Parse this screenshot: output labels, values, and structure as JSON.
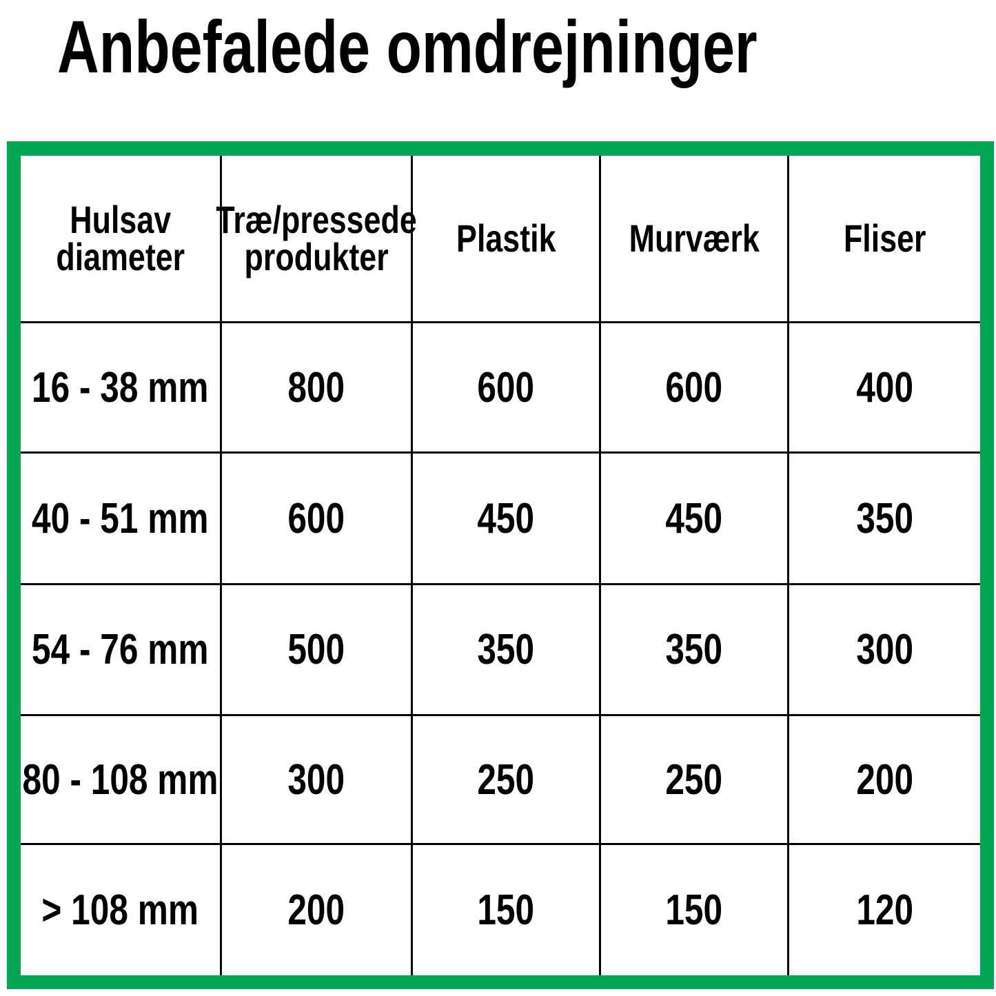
{
  "title": "Anbefalede omdrejninger",
  "colors": {
    "border": "#00a651",
    "grid": "#000000"
  },
  "table": {
    "headers": [
      [
        "Hulsav",
        "diameter"
      ],
      [
        "Træ/pressede",
        "produkter"
      ],
      [
        "Plastik"
      ],
      [
        "Murværk"
      ],
      [
        "Fliser"
      ]
    ],
    "rows": [
      [
        "16 - 38 mm",
        "800",
        "600",
        "600",
        "400"
      ],
      [
        "40 - 51 mm",
        "600",
        "450",
        "450",
        "350"
      ],
      [
        "54 - 76 mm",
        "500",
        "350",
        "350",
        "300"
      ],
      [
        "80 - 108 mm",
        "300",
        "250",
        "250",
        "200"
      ],
      [
        "> 108 mm",
        "200",
        "150",
        "150",
        "120"
      ]
    ]
  }
}
